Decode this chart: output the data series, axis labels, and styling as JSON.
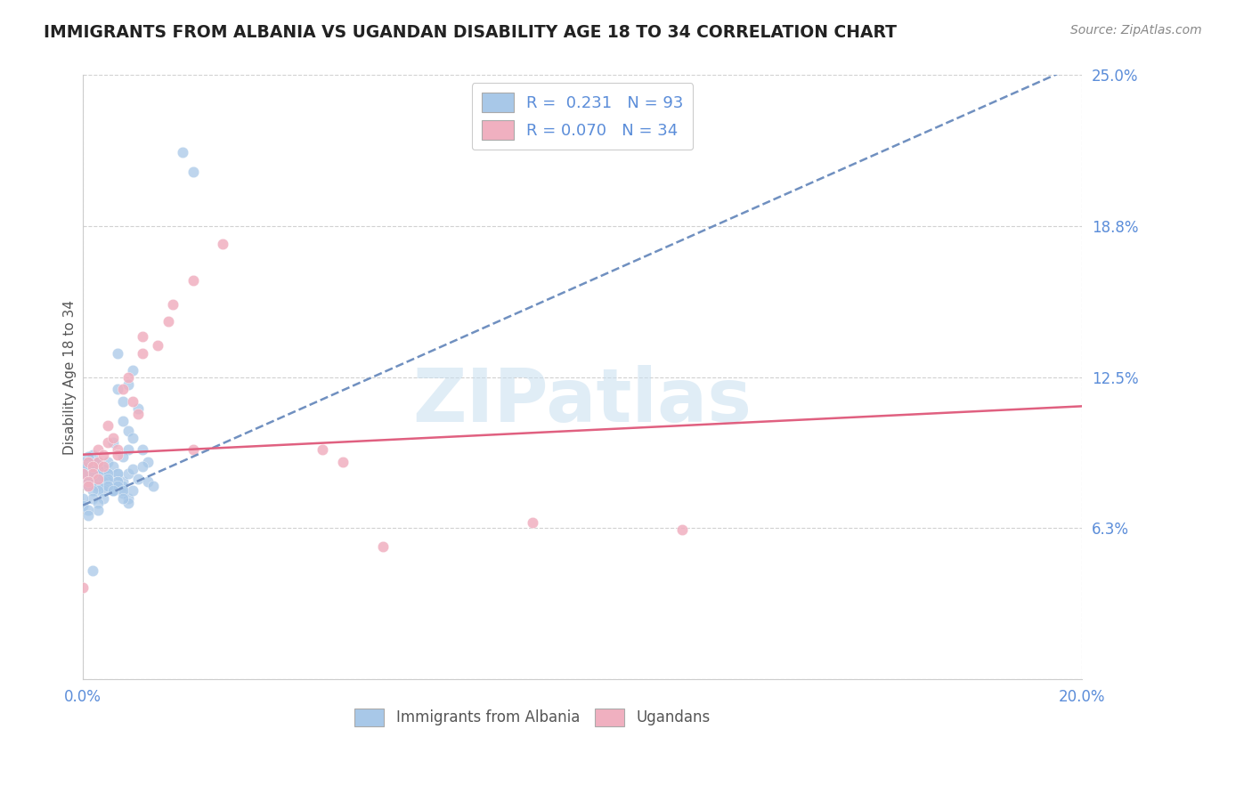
{
  "title": "IMMIGRANTS FROM ALBANIA VS UGANDAN DISABILITY AGE 18 TO 34 CORRELATION CHART",
  "source": "Source: ZipAtlas.com",
  "ylabel": "Disability Age 18 to 34",
  "xlim": [
    0.0,
    0.2
  ],
  "ylim": [
    0.0,
    0.25
  ],
  "yticks_right": [
    0.0,
    0.0625,
    0.125,
    0.1875,
    0.25
  ],
  "ytick_labels_right": [
    "",
    "6.3%",
    "12.5%",
    "18.8%",
    "25.0%"
  ],
  "background_color": "#ffffff",
  "grid_color": "#cccccc",
  "blue_color": "#a8c8e8",
  "pink_color": "#f0b0c0",
  "blue_line_color": "#7090c0",
  "pink_line_color": "#e06080",
  "label_color": "#5b8dd9",
  "title_color": "#222222",
  "source_color": "#888888",
  "ylabel_color": "#555555",
  "albania_trend_x": [
    0.0,
    0.2
  ],
  "albania_trend_y": [
    0.072,
    0.255
  ],
  "ugandan_trend_x": [
    0.0,
    0.2
  ],
  "ugandan_trend_y": [
    0.093,
    0.113
  ],
  "albania_scatter_x": [
    0.02,
    0.022,
    0.007,
    0.01,
    0.009,
    0.007,
    0.008,
    0.011,
    0.008,
    0.009,
    0.01,
    0.006,
    0.009,
    0.008,
    0.012,
    0.013,
    0.005,
    0.006,
    0.007,
    0.008,
    0.007,
    0.009,
    0.01,
    0.011,
    0.012,
    0.013,
    0.014,
    0.003,
    0.004,
    0.005,
    0.005,
    0.006,
    0.006,
    0.007,
    0.007,
    0.008,
    0.008,
    0.009,
    0.009,
    0.01,
    0.002,
    0.002,
    0.003,
    0.003,
    0.004,
    0.004,
    0.005,
    0.005,
    0.006,
    0.006,
    0.007,
    0.007,
    0.008,
    0.008,
    0.001,
    0.001,
    0.002,
    0.002,
    0.002,
    0.003,
    0.003,
    0.003,
    0.004,
    0.004,
    0.004,
    0.005,
    0.005,
    0.006,
    0.0,
    0.001,
    0.001,
    0.001,
    0.001,
    0.002,
    0.002,
    0.002,
    0.003,
    0.003,
    0.003,
    0.004,
    0.0,
    0.0,
    0.001,
    0.001,
    0.002,
    0.002,
    0.003,
    0.003,
    0.0,
    0.0,
    0.001,
    0.001,
    0.002
  ],
  "albania_scatter_y": [
    0.218,
    0.21,
    0.135,
    0.128,
    0.122,
    0.12,
    0.115,
    0.112,
    0.107,
    0.103,
    0.1,
    0.098,
    0.095,
    0.092,
    0.095,
    0.09,
    0.09,
    0.088,
    0.085,
    0.082,
    0.08,
    0.085,
    0.087,
    0.083,
    0.088,
    0.082,
    0.08,
    0.09,
    0.087,
    0.085,
    0.083,
    0.08,
    0.078,
    0.085,
    0.082,
    0.08,
    0.077,
    0.075,
    0.073,
    0.078,
    0.093,
    0.09,
    0.088,
    0.085,
    0.083,
    0.08,
    0.085,
    0.082,
    0.08,
    0.078,
    0.082,
    0.08,
    0.078,
    0.075,
    0.092,
    0.09,
    0.088,
    0.085,
    0.082,
    0.09,
    0.087,
    0.085,
    0.082,
    0.08,
    0.078,
    0.083,
    0.08,
    0.078,
    0.09,
    0.088,
    0.085,
    0.083,
    0.08,
    0.088,
    0.085,
    0.082,
    0.083,
    0.08,
    0.078,
    0.075,
    0.088,
    0.085,
    0.082,
    0.08,
    0.078,
    0.075,
    0.073,
    0.07,
    0.075,
    0.072,
    0.07,
    0.068,
    0.045
  ],
  "ugandan_scatter_x": [
    0.028,
    0.022,
    0.018,
    0.017,
    0.012,
    0.012,
    0.015,
    0.008,
    0.009,
    0.01,
    0.011,
    0.005,
    0.005,
    0.006,
    0.007,
    0.007,
    0.003,
    0.003,
    0.004,
    0.004,
    0.001,
    0.002,
    0.002,
    0.003,
    0.0,
    0.001,
    0.001,
    0.052,
    0.06,
    0.09,
    0.12,
    0.048,
    0.022,
    0.0
  ],
  "ugandan_scatter_y": [
    0.18,
    0.165,
    0.155,
    0.148,
    0.142,
    0.135,
    0.138,
    0.12,
    0.125,
    0.115,
    0.11,
    0.105,
    0.098,
    0.1,
    0.095,
    0.093,
    0.095,
    0.09,
    0.088,
    0.093,
    0.09,
    0.088,
    0.085,
    0.083,
    0.085,
    0.082,
    0.08,
    0.09,
    0.055,
    0.065,
    0.062,
    0.095,
    0.095,
    0.038
  ]
}
